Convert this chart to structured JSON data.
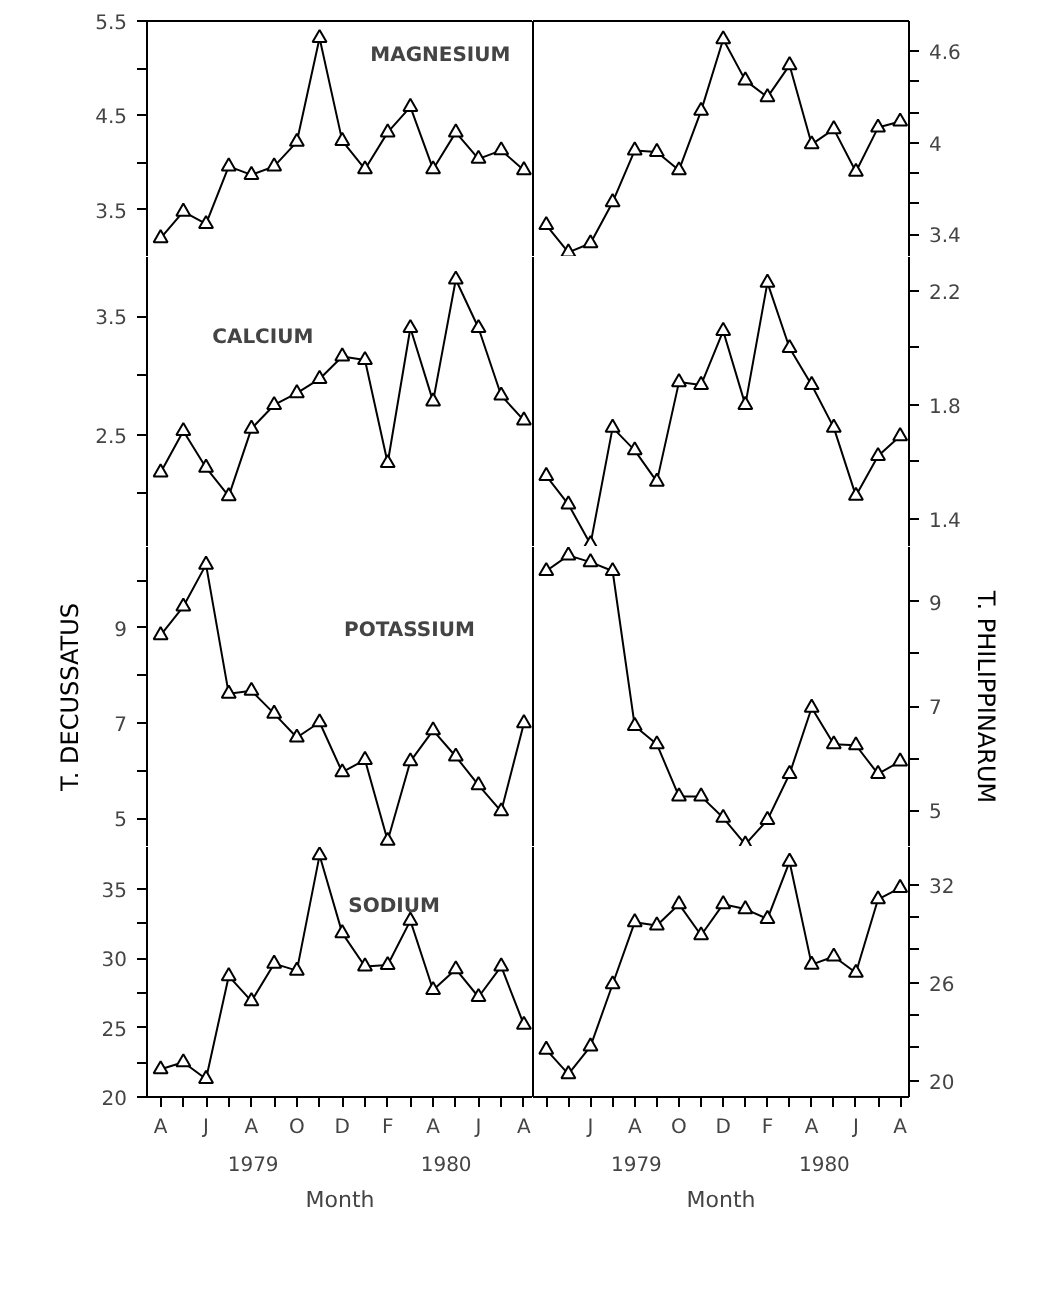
{
  "chart_data": [
    {
      "type": "line",
      "title": "MAGNESIUM",
      "marker": "triangle",
      "tick_labels": "y",
      "categories": [
        null,
        null,
        null,
        null,
        null,
        null,
        null,
        null,
        null,
        null,
        null,
        null,
        null,
        null,
        null,
        null,
        null
      ],
      "ylim": [
        3.0,
        5.5
      ],
      "yticks": [
        3.5,
        {
          "value": 4,
          "label": null
        },
        4.5,
        {
          "value": 5,
          "label": null
        },
        5.5
      ],
      "series": [
        {
          "color": "#000000",
          "values": [
            3.2,
            3.48,
            3.35,
            3.96,
            3.87,
            3.96,
            4.22,
            5.32,
            4.23,
            3.93,
            4.32,
            4.59,
            3.93,
            4.32,
            4.04,
            4.13,
            3.92
          ]
        }
      ]
    },
    {
      "type": "line",
      "marker": "triangle",
      "tick_labels": "y",
      "categories": [
        null,
        null,
        null,
        null,
        null,
        null,
        null,
        null,
        null,
        null,
        null,
        null,
        null,
        null,
        null,
        null,
        null
      ],
      "ylim": [
        3.25,
        4.8
      ],
      "yticks": [
        3.4,
        {
          "value": 3.6,
          "label": null
        },
        {
          "value": 3.8,
          "label": null
        },
        4,
        {
          "value": 4.2,
          "label": null
        },
        {
          "value": 4.4,
          "label": null
        },
        4.6
      ],
      "series": [
        {
          "color": "#000000",
          "values": [
            3.46,
            3.28,
            3.34,
            3.61,
            3.95,
            3.94,
            3.82,
            4.21,
            4.68,
            4.41,
            4.3,
            4.51,
            3.99,
            4.09,
            3.81,
            4.1,
            4.14
          ]
        }
      ]
    },
    {
      "type": "line",
      "title": "CALCIUM",
      "marker": "triangle",
      "tick_labels": "y",
      "categories": [
        null,
        null,
        null,
        null,
        null,
        null,
        null,
        null,
        null,
        null,
        null,
        null,
        null,
        null,
        null,
        null,
        null
      ],
      "ylim": [
        1.55,
        4.0
      ],
      "yticks": [
        {
          "value": 2,
          "label": null
        },
        2.5,
        {
          "value": 3,
          "label": null
        },
        3.5
      ],
      "series": [
        {
          "color": "#000000",
          "values": [
            2.18,
            2.53,
            2.22,
            1.98,
            2.55,
            2.75,
            2.85,
            2.97,
            3.16,
            3.13,
            2.26,
            3.4,
            2.78,
            3.81,
            3.4,
            2.83,
            2.62
          ]
        }
      ]
    },
    {
      "type": "line",
      "marker": "triangle",
      "tick_labels": "y",
      "categories": [
        null,
        null,
        null,
        null,
        null,
        null,
        null,
        null,
        null,
        null,
        null,
        null,
        null,
        null,
        null,
        null,
        null
      ],
      "ylim": [
        1.3,
        2.32
      ],
      "yticks": [
        1.4,
        {
          "value": 1.6,
          "label": null
        },
        1.8,
        {
          "value": 2.0,
          "label": null
        },
        2.2
      ],
      "series": [
        {
          "color": "#000000",
          "values": [
            1.55,
            1.45,
            1.31,
            1.72,
            1.64,
            1.53,
            1.88,
            1.87,
            2.06,
            1.8,
            2.23,
            2.0,
            1.87,
            1.72,
            1.48,
            1.62,
            1.69
          ]
        }
      ]
    },
    {
      "type": "line",
      "title": "POTASSIUM",
      "ylabel": "T. DECUSSATUS",
      "marker": "triangle",
      "tick_labels": "y",
      "categories": [
        null,
        null,
        null,
        null,
        null,
        null,
        null,
        null,
        null,
        null,
        null,
        null,
        null,
        null,
        null,
        null,
        null
      ],
      "ylim": [
        4.4,
        10.7
      ],
      "yticks": [
        5,
        {
          "value": 6,
          "label": null
        },
        7,
        {
          "value": 8,
          "label": null
        },
        9,
        {
          "value": 10,
          "label": null
        }
      ],
      "series": [
        {
          "color": "#000000",
          "values": [
            8.85,
            9.45,
            10.33,
            7.62,
            7.68,
            7.2,
            6.7,
            7.02,
            5.97,
            6.23,
            4.53,
            6.2,
            6.85,
            6.3,
            5.7,
            5.15,
            7.0
          ]
        }
      ]
    },
    {
      "type": "line",
      "ylabel": "T. PHILIPPINARUM",
      "marker": "triangle",
      "tick_labels": "y",
      "categories": [
        null,
        null,
        null,
        null,
        null,
        null,
        null,
        null,
        null,
        null,
        null,
        null,
        null,
        null,
        null,
        null,
        null
      ],
      "ylim": [
        4.3,
        10.05
      ],
      "yticks": [
        5,
        {
          "value": 6,
          "label": null
        },
        7,
        {
          "value": 8,
          "label": null
        },
        9
      ],
      "series": [
        {
          "color": "#000000",
          "values": [
            9.59,
            9.89,
            9.76,
            9.59,
            6.62,
            6.27,
            5.27,
            5.27,
            4.86,
            4.35,
            4.82,
            5.7,
            6.97,
            6.27,
            6.25,
            5.7,
            5.94
          ]
        }
      ]
    },
    {
      "type": "line",
      "title": "SODIUM",
      "xlabel": "Month",
      "marker": "triangle",
      "categories": [
        "A",
        null,
        "J",
        null,
        "A",
        null,
        "O",
        null,
        "D",
        null,
        "F",
        null,
        "A",
        null,
        "J",
        null,
        "A"
      ],
      "ylim": [
        20,
        38
      ],
      "yticks": [
        20,
        {
          "value": 22.5,
          "label": null
        },
        25,
        {
          "value": 27.5,
          "label": null
        },
        30,
        {
          "value": 32.5,
          "label": null
        },
        35
      ],
      "annotations": [
        "1979",
        "1980"
      ],
      "series": [
        {
          "color": "#000000",
          "values": [
            22.0,
            22.5,
            21.3,
            28.7,
            26.9,
            29.6,
            29.1,
            37.4,
            31.8,
            29.4,
            29.5,
            32.7,
            27.7,
            29.2,
            27.2,
            29.4,
            25.2
          ]
        }
      ]
    },
    {
      "type": "line",
      "xlabel": "Month",
      "marker": "triangle",
      "categories": [
        null,
        null,
        "J",
        null,
        "A",
        null,
        "O",
        null,
        "D",
        null,
        "F",
        null,
        "A",
        null,
        "J",
        null,
        "A"
      ],
      "ylim": [
        19,
        34.3
      ],
      "yticks": [
        20,
        {
          "value": 22,
          "label": null
        },
        {
          "value": 24,
          "label": null
        },
        26,
        {
          "value": 28,
          "label": null
        },
        {
          "value": 30,
          "label": null
        },
        32
      ],
      "annotations": [
        "1979",
        "1980"
      ],
      "series": [
        {
          "color": "#000000",
          "values": [
            21.9,
            20.4,
            22.1,
            25.9,
            29.7,
            29.5,
            30.8,
            28.9,
            30.8,
            30.5,
            29.9,
            33.4,
            27.1,
            27.6,
            26.6,
            31.1,
            31.8
          ]
        }
      ]
    }
  ]
}
